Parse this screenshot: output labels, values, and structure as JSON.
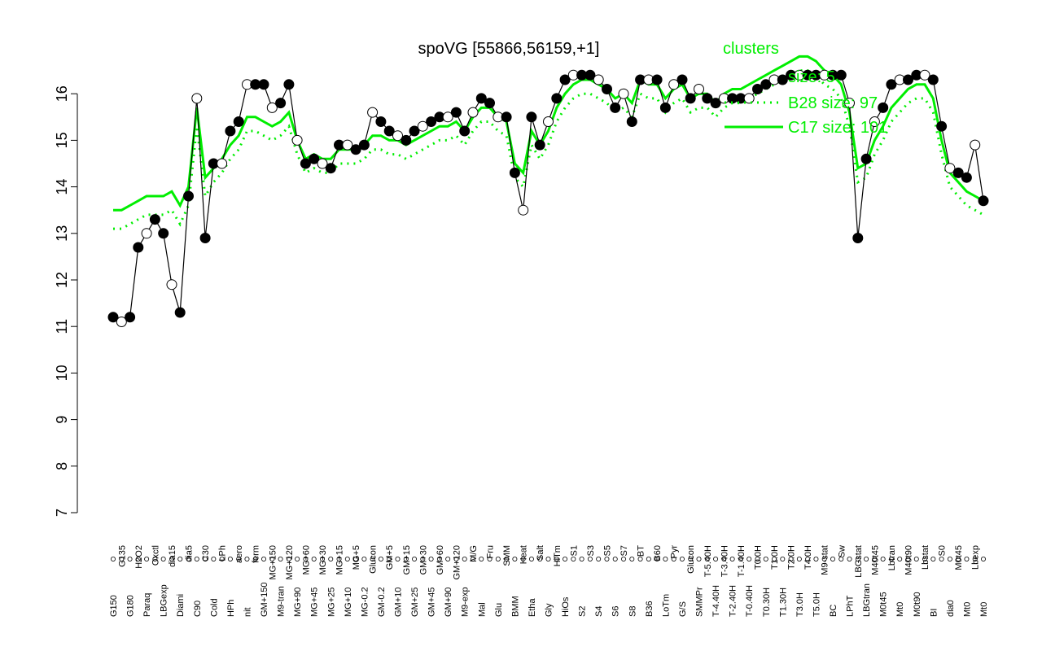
{
  "chart_data": {
    "type": "line",
    "title": "spoVG [55866,56159,+1]",
    "xlabel": "",
    "ylabel": "",
    "ylim": [
      7,
      16.5
    ],
    "yticks": [
      7,
      8,
      9,
      10,
      11,
      12,
      13,
      14,
      15,
      16
    ],
    "grid": false,
    "legend_position": "top-right",
    "colors": {
      "data": "#000000",
      "clusters": "#00ee00"
    },
    "legend": [
      {
        "label": "clusters"
      },
      {
        "label": "size: 5"
      },
      {
        "label": "B28 size: 97"
      },
      {
        "label": "C17 size: 101"
      }
    ],
    "categories": [
      "G150",
      "G135",
      "G180",
      "H2O2",
      "Paraq",
      "Oxctl",
      "LBGexp",
      "dia15",
      "Diami",
      "dia5",
      "C90",
      "C30",
      "Cold",
      "LPh",
      "HPh",
      "aero",
      "nit",
      "ferm",
      "GM+150",
      "MG+150",
      "M9-tran",
      "MG+120",
      "MG+90",
      "MG+60",
      "MG+45",
      "MG+30",
      "MG+25",
      "MG+15",
      "MG+10",
      "MG+5",
      "MG-0.2",
      "Glucon",
      "GM-0.2",
      "GM+5",
      "GM+10",
      "GM+15",
      "GM+25",
      "GM+30",
      "GM+45",
      "GM+60",
      "GM+90",
      "GM+120",
      "M9-exp",
      "M/G",
      "Mal",
      "Fru",
      "Glu",
      "SMM",
      "BMM",
      "Heat",
      "Etha",
      "Salt",
      "Gly",
      "HiTm",
      "HiOs",
      "S1",
      "S2",
      "S3",
      "S4",
      "S5",
      "S6",
      "S7",
      "S8",
      "BT",
      "B36",
      "B60",
      "LoTm",
      "Pyr",
      "G/S",
      "Glucon",
      "SMMPr",
      "T-5.40H",
      "T-4.40H",
      "T-3.40H",
      "T-2.40H",
      "T-1.40H",
      "T-0.40H",
      "T0.0H",
      "T0.30H",
      "T1.0H",
      "T1.30H",
      "T2.0H",
      "T3.0H",
      "T4.0H",
      "T5.0H",
      "M9-stat",
      "BC",
      "Sw",
      "LPhT",
      "LBGstat",
      "LBGtran",
      "M40t45",
      "M0t45",
      "Lbtran",
      "Mt0",
      "M40t90",
      "M0t90",
      "Lbstat",
      "BI",
      "S0",
      "dia0",
      "M0t45",
      "Mt0",
      "Lbexp",
      "Mt0"
    ],
    "series": [
      {
        "values": [
          11.2,
          11.1,
          11.2,
          12.7,
          13.0,
          13.3,
          13.0,
          11.9,
          11.3,
          13.8,
          15.9,
          12.9,
          14.5,
          14.5,
          15.2,
          15.4,
          16.2,
          16.2,
          16.2,
          15.7,
          15.8,
          16.2,
          15.0,
          14.5,
          14.6,
          14.5,
          14.4,
          14.9,
          14.9,
          14.8,
          14.9,
          15.6,
          15.4,
          15.2,
          15.1,
          15.0,
          15.2,
          15.3,
          15.4,
          15.5,
          15.5,
          15.6,
          15.2,
          15.6,
          15.9,
          15.8,
          15.5,
          15.5,
          14.3,
          13.5,
          15.5,
          14.9,
          15.4,
          15.9,
          16.3,
          16.4,
          16.4,
          16.4,
          16.3,
          16.1,
          15.7,
          16.0,
          15.4,
          16.3,
          16.3,
          16.3,
          15.7,
          16.2,
          16.3,
          15.9,
          16.1,
          15.9,
          15.8,
          15.9,
          15.9,
          15.9,
          15.9,
          16.1,
          16.2,
          16.3,
          16.3,
          16.4,
          16.4,
          16.4,
          16.4,
          16.4,
          16.4,
          16.4,
          15.8,
          12.9,
          14.6,
          15.4,
          15.7,
          16.2,
          16.3,
          16.3,
          16.4,
          16.4,
          16.3,
          15.3,
          14.4,
          14.3,
          14.2,
          14.9,
          13.7
        ]
      },
      {
        "values": [
          13.5,
          13.5,
          13.6,
          13.7,
          13.8,
          13.8,
          13.8,
          13.9,
          13.6,
          14.0,
          15.7,
          14.2,
          14.4,
          14.6,
          14.9,
          15.1,
          15.5,
          15.5,
          15.4,
          15.3,
          15.4,
          15.6,
          15.0,
          14.6,
          14.7,
          14.6,
          14.6,
          14.8,
          14.8,
          14.8,
          14.9,
          15.1,
          15.1,
          15.0,
          15.0,
          14.9,
          15.0,
          15.1,
          15.2,
          15.3,
          15.3,
          15.4,
          15.2,
          15.5,
          15.7,
          15.7,
          15.5,
          15.4,
          14.5,
          14.3,
          15.2,
          14.9,
          15.2,
          15.7,
          16.0,
          16.2,
          16.3,
          16.3,
          16.2,
          16.1,
          15.9,
          16.0,
          15.8,
          16.3,
          16.2,
          16.2,
          15.9,
          16.1,
          16.2,
          15.9,
          16.0,
          16.0,
          15.8,
          16.0,
          16.1,
          16.1,
          16.2,
          16.3,
          16.4,
          16.5,
          16.6,
          16.7,
          16.8,
          16.8,
          16.7,
          16.5,
          16.4,
          16.2,
          15.6,
          14.4,
          14.5,
          15.0,
          15.3,
          15.7,
          15.9,
          16.1,
          16.2,
          16.2,
          15.9,
          15.0,
          14.3,
          14.1,
          13.9,
          13.8,
          13.7
        ]
      },
      {
        "values": [
          13.1,
          13.1,
          13.2,
          13.3,
          13.4,
          13.4,
          13.4,
          13.5,
          13.2,
          13.6,
          15.3,
          13.8,
          14.1,
          14.3,
          14.6,
          14.8,
          15.2,
          15.2,
          15.1,
          15.0,
          15.1,
          15.3,
          14.7,
          14.3,
          14.4,
          14.3,
          14.3,
          14.5,
          14.5,
          14.5,
          14.6,
          14.8,
          14.8,
          14.7,
          14.7,
          14.6,
          14.7,
          14.8,
          14.9,
          15.0,
          15.0,
          15.1,
          14.9,
          15.2,
          15.4,
          15.4,
          15.2,
          15.1,
          14.2,
          14.0,
          14.9,
          14.6,
          14.9,
          15.4,
          15.7,
          15.9,
          16.0,
          16.0,
          15.9,
          15.8,
          15.6,
          15.7,
          15.5,
          16.0,
          15.9,
          15.9,
          15.6,
          15.8,
          15.9,
          15.6,
          15.7,
          15.7,
          15.5,
          15.7,
          15.8,
          15.8,
          15.9,
          16.0,
          16.1,
          16.2,
          16.3,
          16.4,
          16.5,
          16.5,
          16.4,
          16.2,
          16.1,
          15.9,
          15.3,
          14.1,
          14.2,
          14.7,
          15.0,
          15.4,
          15.6,
          15.8,
          15.9,
          15.9,
          15.6,
          14.7,
          14.0,
          13.8,
          13.6,
          13.5,
          13.4
        ]
      }
    ]
  }
}
